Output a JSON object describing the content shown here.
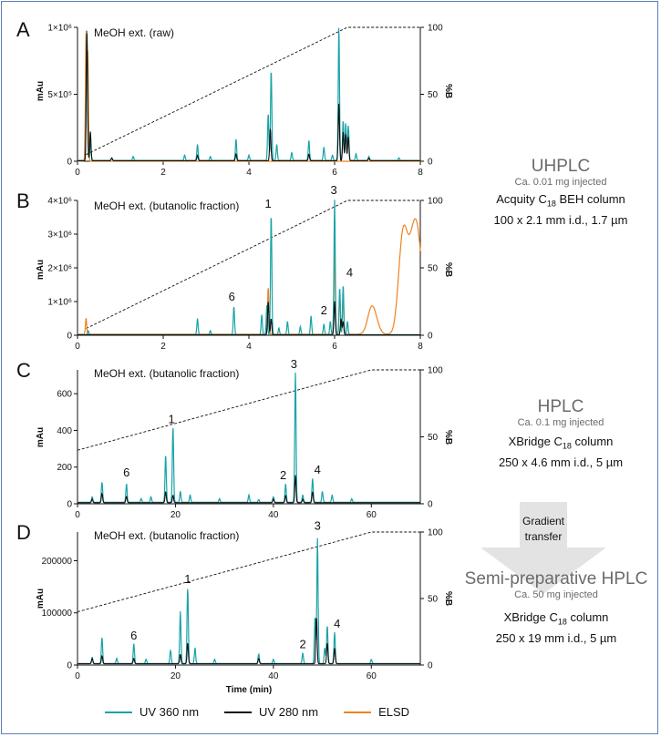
{
  "colors": {
    "uv360": "#1aa3a8",
    "uv280": "#111111",
    "elsd": "#f0821e",
    "gradient": "#111111",
    "arrow": "#e3e3e3"
  },
  "chart_data": [
    {
      "id": "A",
      "panel_label": "A",
      "type": "line",
      "title": "MeOH ext. (raw)",
      "ylabel": "mAu",
      "y2label": "%B",
      "xlabel": "",
      "xlim": [
        0,
        8
      ],
      "ylim": [
        0,
        1000000
      ],
      "y2lim": [
        0,
        100
      ],
      "xticks": [
        "0",
        "2",
        "4",
        "6",
        "8"
      ],
      "yticks": [
        "0",
        "5×10⁵",
        "1×10⁶"
      ],
      "y2ticks": [
        "0",
        "50",
        "100"
      ],
      "gradient": {
        "x": [
          0.2,
          6.3,
          8.0
        ],
        "y": [
          5,
          100,
          100
        ]
      },
      "baseline": {
        "uv360": 0.006,
        "uv280": 0.004,
        "elsd": 0
      },
      "series": [
        {
          "name": "UV 360 nm",
          "key": "uv360",
          "peaks": [
            [
              0.22,
              0.98
            ],
            [
              0.3,
              0.15
            ],
            [
              0.8,
              0.02
            ],
            [
              1.3,
              0.03
            ],
            [
              2.5,
              0.04
            ],
            [
              2.8,
              0.12
            ],
            [
              3.1,
              0.03
            ],
            [
              3.7,
              0.16
            ],
            [
              4.0,
              0.04
            ],
            [
              4.45,
              0.35
            ],
            [
              4.52,
              0.68
            ],
            [
              4.65,
              0.12
            ],
            [
              5.0,
              0.06
            ],
            [
              5.4,
              0.15
            ],
            [
              5.75,
              0.1
            ],
            [
              5.95,
              0.04
            ],
            [
              6.1,
              1.0
            ],
            [
              6.2,
              0.3
            ],
            [
              6.26,
              0.28
            ],
            [
              6.32,
              0.26
            ],
            [
              6.5,
              0.05
            ],
            [
              6.8,
              0.03
            ],
            [
              7.5,
              0.02
            ]
          ]
        },
        {
          "name": "UV 280 nm",
          "key": "uv280",
          "peaks": [
            [
              0.22,
              0.96
            ],
            [
              0.3,
              0.22
            ],
            [
              0.8,
              0.02
            ],
            [
              2.8,
              0.04
            ],
            [
              3.7,
              0.05
            ],
            [
              4.5,
              0.24
            ],
            [
              5.4,
              0.05
            ],
            [
              6.1,
              0.43
            ],
            [
              6.2,
              0.22
            ],
            [
              6.26,
              0.2
            ],
            [
              6.32,
              0.18
            ],
            [
              6.8,
              0.02
            ]
          ]
        },
        {
          "name": "ELSD",
          "key": "elsd",
          "peaks": [
            [
              0.2,
              0.97
            ],
            [
              0.24,
              0.8
            ]
          ]
        }
      ],
      "labels": []
    },
    {
      "id": "B",
      "panel_label": "B",
      "type": "line",
      "title": "MeOH ext. (butanolic fraction)",
      "ylabel": "mAu",
      "y2label": "%B",
      "xlabel": "",
      "xlim": [
        0,
        8
      ],
      "ylim": [
        0,
        4000000
      ],
      "y2lim": [
        0,
        100
      ],
      "xticks": [
        "0",
        "2",
        "4",
        "6",
        "8"
      ],
      "yticks": [
        "0",
        "1×10⁶",
        "2×10⁶",
        "3×10⁶",
        "4×10⁶"
      ],
      "y2ticks": [
        "0",
        "50",
        "100"
      ],
      "gradient": {
        "x": [
          0.2,
          6.3,
          8.0
        ],
        "y": [
          5,
          100,
          100
        ]
      },
      "baseline": {
        "uv360": 0.004,
        "uv280": 0.003,
        "elsd": 0.008
      },
      "series": [
        {
          "name": "UV 360 nm",
          "key": "uv360",
          "peaks": [
            [
              0.25,
              0.03
            ],
            [
              2.8,
              0.12
            ],
            [
              3.1,
              0.03
            ],
            [
              3.65,
              0.21
            ],
            [
              4.3,
              0.15
            ],
            [
              4.42,
              0.22
            ],
            [
              4.52,
              0.9
            ],
            [
              4.7,
              0.05
            ],
            [
              4.9,
              0.1
            ],
            [
              5.2,
              0.06
            ],
            [
              5.45,
              0.14
            ],
            [
              5.75,
              0.08
            ],
            [
              5.9,
              0.1
            ],
            [
              6.0,
              1.0
            ],
            [
              6.12,
              0.35
            ],
            [
              6.2,
              0.37
            ],
            [
              6.3,
              0.1
            ]
          ]
        },
        {
          "name": "UV 280 nm",
          "key": "uv280",
          "peaks": [
            [
              4.45,
              0.25
            ],
            [
              4.52,
              0.12
            ],
            [
              6.0,
              0.25
            ],
            [
              6.15,
              0.12
            ],
            [
              6.2,
              0.1
            ]
          ]
        },
        {
          "name": "ELSD",
          "key": "elsd",
          "peaks": [
            [
              0.2,
              0.12
            ],
            [
              4.45,
              0.35
            ],
            [
              6.0,
              0.65
            ],
            [
              6.12,
              0.28
            ],
            [
              6.2,
              0.3
            ],
            [
              6.85,
              0.16
            ],
            [
              6.95,
              0.08
            ],
            [
              7.55,
              0.42
            ],
            [
              7.65,
              0.47
            ],
            [
              7.8,
              0.4
            ],
            [
              7.9,
              0.44
            ],
            [
              8.0,
              0.35
            ]
          ]
        }
      ],
      "labels": [
        {
          "text": "1",
          "x": 4.45,
          "y": 0.92
        },
        {
          "text": "3",
          "x": 5.98,
          "y": 1.02
        },
        {
          "text": "6",
          "x": 3.6,
          "y": 0.23
        },
        {
          "text": "2",
          "x": 5.75,
          "y": 0.13
        },
        {
          "text": "4",
          "x": 6.35,
          "y": 0.41
        }
      ]
    },
    {
      "id": "C",
      "panel_label": "C",
      "type": "line",
      "title": "MeOH ext. (butanolic fraction)",
      "ylabel": "mAu",
      "y2label": "%B",
      "xlabel": "",
      "xlim": [
        0,
        70
      ],
      "ylim": [
        0,
        730
      ],
      "y2lim": [
        0,
        100
      ],
      "xticks": [
        "0",
        "20",
        "40",
        "60"
      ],
      "xtickvals": [
        0,
        20,
        40,
        60
      ],
      "yticks": [
        "0",
        "200",
        "400",
        "600"
      ],
      "ytickvals": [
        0,
        200,
        400,
        600
      ],
      "y2ticks": [
        "0",
        "50",
        "100"
      ],
      "gradient": {
        "x": [
          0,
          60,
          70
        ],
        "y": [
          40,
          100,
          100
        ]
      },
      "baseline": {
        "uv360": 8,
        "uv280": 6
      },
      "series": [
        {
          "name": "UV 360 nm",
          "key": "uv360",
          "peaks": [
            [
              3,
              30
            ],
            [
              5,
              110
            ],
            [
              10,
              100
            ],
            [
              13,
              20
            ],
            [
              15,
              30
            ],
            [
              18,
              260
            ],
            [
              19.5,
              410
            ],
            [
              21,
              60
            ],
            [
              23,
              40
            ],
            [
              29,
              20
            ],
            [
              35,
              40
            ],
            [
              37,
              15
            ],
            [
              40,
              30
            ],
            [
              42.5,
              100
            ],
            [
              44.5,
              710
            ],
            [
              46,
              40
            ],
            [
              48,
              130
            ],
            [
              50,
              60
            ],
            [
              52,
              40
            ],
            [
              56,
              20
            ]
          ]
        },
        {
          "name": "UV 280 nm",
          "key": "uv280",
          "peaks": [
            [
              3,
              20
            ],
            [
              5,
              50
            ],
            [
              10,
              35
            ],
            [
              18,
              60
            ],
            [
              19.5,
              40
            ],
            [
              40,
              20
            ],
            [
              42.5,
              40
            ],
            [
              44.5,
              150
            ],
            [
              46,
              20
            ],
            [
              48,
              60
            ]
          ]
        }
      ],
      "labels": [
        {
          "text": "1",
          "x": 19.2,
          "y": 420
        },
        {
          "text": "3",
          "x": 44.2,
          "y": 720
        },
        {
          "text": "6",
          "x": 10,
          "y": 130
        },
        {
          "text": "2",
          "x": 42,
          "y": 115
        },
        {
          "text": "4",
          "x": 49,
          "y": 145
        }
      ]
    },
    {
      "id": "D",
      "panel_label": "D",
      "type": "line",
      "title": "MeOH ext. (butanolic fraction)",
      "ylabel": "mAu",
      "y2label": "%B",
      "xlabel": "Time (min)",
      "xlim": [
        0,
        70
      ],
      "ylim": [
        0,
        255000
      ],
      "y2lim": [
        0,
        100
      ],
      "xticks": [
        "0",
        "20",
        "40",
        "60"
      ],
      "xtickvals": [
        0,
        20,
        40,
        60
      ],
      "yticks": [
        "0",
        "100000",
        "200000"
      ],
      "ytickvals": [
        0,
        100000,
        200000
      ],
      "y2ticks": [
        "0",
        "50",
        "100"
      ],
      "gradient": {
        "x": [
          0,
          60,
          70
        ],
        "y": [
          40,
          100,
          100
        ]
      },
      "baseline": {
        "uv360": 3000,
        "uv280": 2500
      },
      "series": [
        {
          "name": "UV 360 nm",
          "key": "uv360",
          "peaks": [
            [
              3,
              12000
            ],
            [
              5,
              50000
            ],
            [
              8,
              10000
            ],
            [
              11.5,
              38000
            ],
            [
              14,
              8000
            ],
            [
              19,
              25000
            ],
            [
              21,
              100000
            ],
            [
              22.5,
              145000
            ],
            [
              24,
              30000
            ],
            [
              28,
              8000
            ],
            [
              37,
              18000
            ],
            [
              40,
              8000
            ],
            [
              46,
              20000
            ],
            [
              48.5,
              90000
            ],
            [
              49,
              240000
            ],
            [
              50.5,
              30000
            ],
            [
              51,
              72000
            ],
            [
              52.5,
              60000
            ],
            [
              60,
              8000
            ]
          ]
        },
        {
          "name": "UV 280 nm",
          "key": "uv280",
          "peaks": [
            [
              3,
              10000
            ],
            [
              5,
              15000
            ],
            [
              11.5,
              10000
            ],
            [
              21,
              18000
            ],
            [
              22.5,
              40000
            ],
            [
              37,
              10000
            ],
            [
              48.8,
              90000
            ],
            [
              51,
              40000
            ],
            [
              52.5,
              30000
            ]
          ]
        }
      ],
      "labels": [
        {
          "text": "1",
          "x": 22.5,
          "y": 150000
        },
        {
          "text": "3",
          "x": 49,
          "y": 252000
        },
        {
          "text": "6",
          "x": 11.5,
          "y": 42000
        },
        {
          "text": "2",
          "x": 46,
          "y": 25000
        },
        {
          "text": "4",
          "x": 53,
          "y": 65000
        }
      ]
    }
  ],
  "side": {
    "uhplc": {
      "title": "UHPLC",
      "injected": "Ca. 0.01 mg injected",
      "column_a": "Acquity C",
      "column_sub": "18",
      "column_b": " BEH column",
      "dims": "100 x 2.1 mm i.d., 1.7 µm"
    },
    "hplc": {
      "title": "HPLC",
      "injected": "Ca. 0.1 mg injected",
      "column_a": "XBridge C",
      "column_sub": "18",
      "column_b": " column",
      "dims": "250 x 4.6 mm i.d., 5 µm"
    },
    "gradient_transfer": "Gradient\ntransfer",
    "semiprep": {
      "title": "Semi-preparative HPLC",
      "injected": "Ca. 50 mg injected",
      "column_a": "XBridge C",
      "column_sub": "18",
      "column_b": " column",
      "dims": "250 x 19 mm i.d., 5 µm"
    }
  },
  "legend": [
    {
      "label": "UV 360 nm",
      "key": "uv360"
    },
    {
      "label": "UV 280 nm",
      "key": "uv280"
    },
    {
      "label": "ELSD",
      "key": "elsd"
    }
  ]
}
